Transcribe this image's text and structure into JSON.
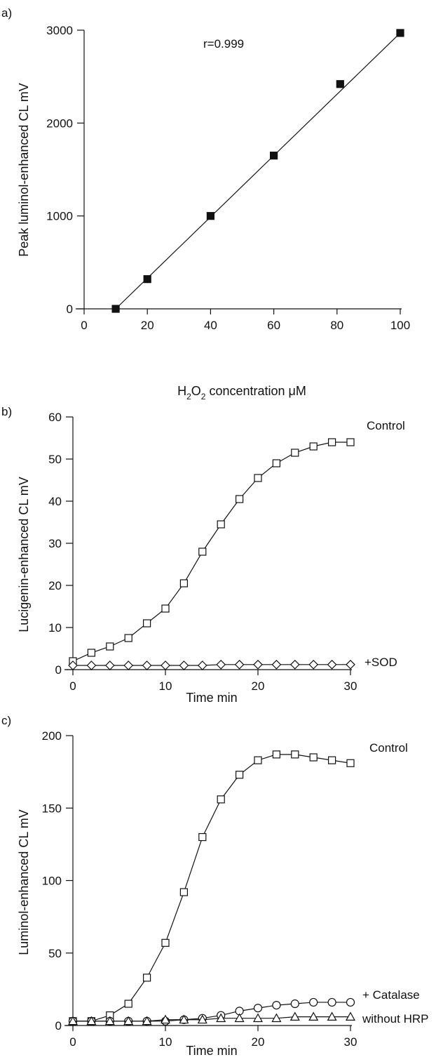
{
  "chart_data": [
    {
      "panel_label": "a)",
      "type": "scatter",
      "xlabel": "H₂O₂ concentration  μM",
      "ylabel": "Peak luminol-enhanced CL  mV",
      "xlim": [
        0,
        100
      ],
      "ylim": [
        0,
        3000
      ],
      "xticks": [
        "0",
        "20",
        "40",
        "60",
        "80",
        "100"
      ],
      "yticks": [
        "0",
        "1000",
        "2000",
        "3000"
      ],
      "annotation": "r=0.999",
      "grid": false,
      "series": [
        {
          "marker": "filled-square",
          "x": [
            10,
            20,
            40,
            60,
            81,
            100
          ],
          "y": [
            0,
            320,
            1000,
            1650,
            2420,
            2970
          ]
        }
      ],
      "fit_line": {
        "x": [
          10,
          100
        ],
        "y": [
          0,
          2970
        ]
      }
    },
    {
      "panel_label": "b)",
      "type": "line",
      "xlabel": "Time  min",
      "ylabel": "Lucigenin-enhanced CL  mV",
      "xlim": [
        0,
        30
      ],
      "ylim": [
        0,
        60
      ],
      "xticks": [
        "0",
        "10",
        "20",
        "30"
      ],
      "yticks": [
        "0",
        "10",
        "20",
        "30",
        "40",
        "50",
        "60"
      ],
      "grid": false,
      "x": [
        0,
        2,
        4,
        6,
        8,
        10,
        12,
        14,
        16,
        18,
        20,
        22,
        24,
        26,
        28,
        30
      ],
      "series": [
        {
          "name": "Control",
          "marker": "open-square",
          "values": [
            2,
            4,
            5.5,
            7.5,
            11,
            14.5,
            20.5,
            28,
            34.5,
            40.5,
            45.5,
            49,
            51.5,
            53,
            54,
            54
          ]
        },
        {
          "name": "+SOD",
          "marker": "open-diamond",
          "values": [
            1,
            1,
            1,
            1,
            1,
            1,
            1,
            1,
            1.2,
            1.2,
            1.2,
            1.2,
            1.2,
            1.2,
            1.2,
            1.2
          ]
        }
      ]
    },
    {
      "panel_label": "c)",
      "type": "line",
      "xlabel": "Time  min",
      "ylabel": "Luminol-enhanced CL  mV",
      "xlim": [
        0,
        30
      ],
      "ylim": [
        0,
        200
      ],
      "xticks": [
        "0",
        "10",
        "20",
        "30"
      ],
      "yticks": [
        "0",
        "50",
        "100",
        "150",
        "200"
      ],
      "grid": false,
      "x": [
        0,
        2,
        4,
        6,
        8,
        10,
        12,
        14,
        16,
        18,
        20,
        22,
        24,
        26,
        28,
        30
      ],
      "series": [
        {
          "name": "Control",
          "marker": "open-square",
          "values": [
            3,
            3,
            7,
            15,
            33,
            57,
            92,
            130,
            156,
            173,
            183,
            187,
            187,
            185,
            183,
            181
          ]
        },
        {
          "name": "+ Catalase",
          "marker": "open-circle",
          "values": [
            3,
            3,
            3,
            3,
            3,
            3,
            4,
            5,
            7,
            10,
            12,
            14,
            15,
            16,
            16,
            16
          ]
        },
        {
          "name": "without HRP",
          "marker": "open-triangle",
          "values": [
            3,
            3,
            3,
            3,
            3,
            4,
            4,
            4,
            5,
            5,
            5,
            5,
            6,
            6,
            6,
            6
          ]
        }
      ]
    }
  ]
}
